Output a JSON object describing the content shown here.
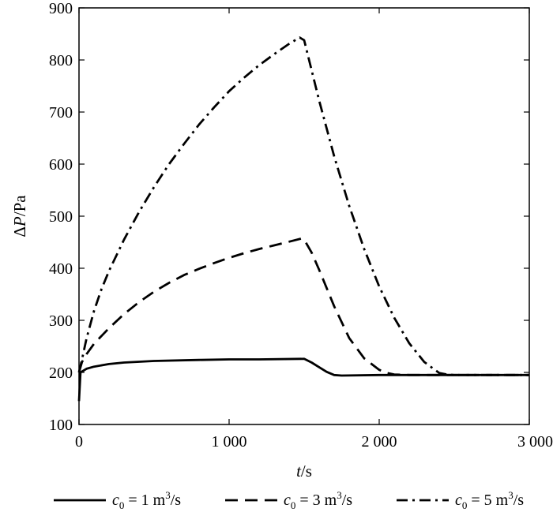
{
  "chart_data": {
    "type": "line",
    "title": "",
    "xlabel": {
      "var": "t",
      "unit": "/s"
    },
    "ylabel": {
      "var": "P",
      "prefix": "Δ",
      "unit": "/Pa"
    },
    "xlim": [
      0,
      3000
    ],
    "ylim": [
      100,
      900
    ],
    "xticks": [
      0,
      1000,
      2000,
      3000
    ],
    "xtick_labels": [
      "0",
      "1 000",
      "2 000",
      "3 000"
    ],
    "yticks": [
      100,
      200,
      300,
      400,
      500,
      600,
      700,
      800,
      900
    ],
    "ytick_labels": [
      "100",
      "200",
      "300",
      "400",
      "500",
      "600",
      "700",
      "800",
      "900"
    ],
    "grid": false,
    "legend_position": "bottom",
    "series": [
      {
        "name": "c0 = 1 m³/s",
        "legend": {
          "var": "c",
          "sub": "0",
          "text": " = 1 m",
          "sup": "3",
          "unit": "/s"
        },
        "style": "solid",
        "x": [
          0,
          10,
          50,
          100,
          200,
          300,
          500,
          800,
          1000,
          1200,
          1500,
          1550,
          1600,
          1650,
          1700,
          1750,
          2000,
          2500,
          3000
        ],
        "y": [
          145,
          200,
          207,
          211,
          216,
          219,
          222,
          224,
          225,
          225,
          226,
          219,
          210,
          201,
          195,
          194,
          195,
          195,
          195
        ]
      },
      {
        "name": "c0 = 3 m³/s",
        "legend": {
          "var": "c",
          "sub": "0",
          "text": " = 3 m",
          "sup": "3",
          "unit": "/s"
        },
        "style": "dashed",
        "x": [
          0,
          20,
          50,
          100,
          200,
          300,
          400,
          500,
          600,
          700,
          800,
          900,
          1000,
          1100,
          1200,
          1300,
          1400,
          1480,
          1500,
          1550,
          1600,
          1700,
          1800,
          1900,
          2000,
          2050,
          2100,
          2200,
          2500,
          3000
        ],
        "y": [
          200,
          220,
          235,
          255,
          285,
          312,
          335,
          355,
          372,
          387,
          399,
          410,
          420,
          429,
          437,
          444,
          451,
          457,
          455,
          430,
          397,
          327,
          266,
          227,
          205,
          199,
          196,
          195,
          195,
          195
        ]
      },
      {
        "name": "c0 = 5 m³/s",
        "legend": {
          "var": "c",
          "sub": "0",
          "text": " = 5 m",
          "sup": "3",
          "unit": "/s"
        },
        "style": "dashdot",
        "x": [
          0,
          20,
          50,
          100,
          150,
          200,
          300,
          400,
          500,
          600,
          700,
          800,
          900,
          1000,
          1100,
          1200,
          1300,
          1400,
          1470,
          1500,
          1550,
          1600,
          1700,
          1800,
          1900,
          2000,
          2100,
          2200,
          2300,
          2400,
          2450,
          2500,
          2700,
          3000
        ],
        "y": [
          200,
          225,
          265,
          318,
          360,
          395,
          455,
          508,
          556,
          600,
          639,
          676,
          709,
          740,
          766,
          790,
          811,
          831,
          843,
          838,
          780,
          722,
          615,
          520,
          437,
          365,
          305,
          256,
          220,
          199,
          196,
          195,
          195,
          195
        ]
      }
    ]
  }
}
